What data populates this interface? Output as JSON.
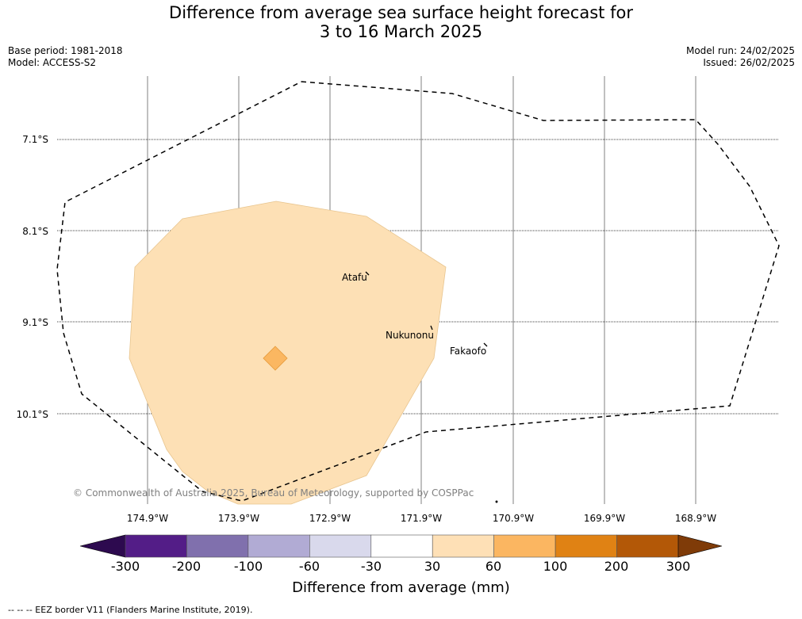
{
  "title_line1": "Difference from average sea surface height forecast for",
  "title_line2": "3 to 16 March 2025",
  "meta_left": [
    "Base period: 1981-2018",
    "Model: ACCESS-S2"
  ],
  "meta_right": [
    "Model run: 24/02/2025",
    "Issued: 26/02/2025"
  ],
  "lat_labels": [
    "7.1°S",
    "8.1°S",
    "9.1°S",
    "10.1°S"
  ],
  "lon_labels": [
    "174.9°W",
    "173.9°W",
    "172.9°W",
    "171.9°W",
    "170.9°W",
    "169.9°W",
    "168.9°W"
  ],
  "places": [
    {
      "name": "Atafu",
      "lon": -172.5,
      "lat": -8.55
    },
    {
      "name": "Nukunonu",
      "lon": -171.85,
      "lat": -9.15
    },
    {
      "name": "Fakaofo",
      "lon": -171.2,
      "lat": -9.35
    }
  ],
  "copyright": "© Commonwealth of Australia 2025, Bureau of Meteorology, supported by COSPPac",
  "colorbar": {
    "title": "Difference from average (mm)",
    "ticks": [
      "-300",
      "-200",
      "-100",
      "-60",
      "-30",
      "30",
      "60",
      "100",
      "200",
      "300"
    ],
    "colors": [
      "#531d87",
      "#8070ad",
      "#b1abd4",
      "#d9d9ec",
      "#ffffff",
      "#fee0b6",
      "#fbb661",
      "#e08214",
      "#b35807"
    ],
    "extend_low_color": "#2d0a4f",
    "extend_high_color": "#7f3b08"
  },
  "fill_colors": {
    "light": "#fde0b5",
    "medium": "#fbb761"
  },
  "footer": "--  --  -- EEZ border V11 (Flanders Marine Institute, 2019)."
}
